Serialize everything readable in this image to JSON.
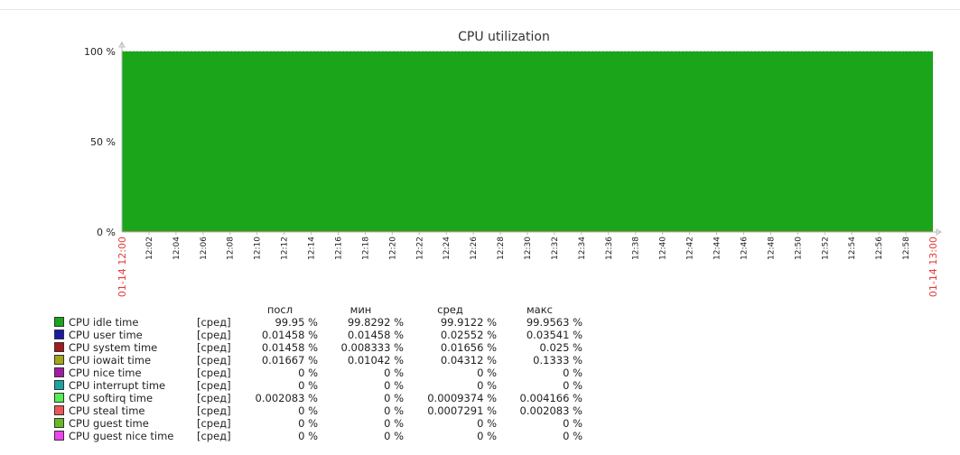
{
  "chart_data": {
    "type": "area",
    "title": "CPU utilization",
    "y_ticks": [
      "100 %",
      "50 %",
      "0 %"
    ],
    "ylim": [
      0,
      100
    ],
    "x_range_labels": {
      "start": "01-14 12:00",
      "end": "01-14 13:00"
    },
    "x_ticks": [
      "12:02",
      "12:04",
      "12:06",
      "12:08",
      "12:10",
      "12:12",
      "12:14",
      "12:16",
      "12:18",
      "12:20",
      "12:22",
      "12:24",
      "12:26",
      "12:28",
      "12:30",
      "12:32",
      "12:34",
      "12:36",
      "12:38",
      "12:40",
      "12:42",
      "12:44",
      "12:46",
      "12:48",
      "12:50",
      "12:52",
      "12:54",
      "12:56",
      "12:58"
    ],
    "series": [
      {
        "name": "CPU idle time",
        "color": "#1aa51a",
        "value": 99.95
      },
      {
        "name": "CPU user time",
        "color": "#1a1aa5"
      },
      {
        "name": "CPU system time",
        "color": "#a51a1a"
      },
      {
        "name": "CPU iowait time",
        "color": "#a5a51a"
      },
      {
        "name": "CPU nice time",
        "color": "#a51aa5"
      },
      {
        "name": "CPU interrupt time",
        "color": "#1aa5a5"
      },
      {
        "name": "CPU softirq time",
        "color": "#55ee55"
      },
      {
        "name": "CPU steal time",
        "color": "#ee5555"
      },
      {
        "name": "CPU guest time",
        "color": "#66bb22"
      },
      {
        "name": "CPU guest nice time",
        "color": "#ee44ee"
      }
    ]
  },
  "legend": {
    "headers": {
      "last": "посл",
      "min": "мин",
      "avg": "сред",
      "max": "макс"
    },
    "rows": [
      {
        "name": "CPU idle time",
        "fn": "[сред]",
        "last": "99.95 %",
        "min": "99.8292 %",
        "avg": "99.9122 %",
        "max": "99.9563 %"
      },
      {
        "name": "CPU user time",
        "fn": "[сред]",
        "last": "0.01458 %",
        "min": "0.01458 %",
        "avg": "0.02552 %",
        "max": "0.03541 %"
      },
      {
        "name": "CPU system time",
        "fn": "[сред]",
        "last": "0.01458 %",
        "min": "0.008333 %",
        "avg": "0.01656 %",
        "max": "0.025 %"
      },
      {
        "name": "CPU iowait time",
        "fn": "[сред]",
        "last": "0.01667 %",
        "min": "0.01042 %",
        "avg": "0.04312 %",
        "max": "0.1333 %"
      },
      {
        "name": "CPU nice time",
        "fn": "[сред]",
        "last": "0 %",
        "min": "0 %",
        "avg": "0 %",
        "max": "0 %"
      },
      {
        "name": "CPU interrupt time",
        "fn": "[сред]",
        "last": "0 %",
        "min": "0 %",
        "avg": "0 %",
        "max": "0 %"
      },
      {
        "name": "CPU softirq time",
        "fn": "[сред]",
        "last": "0.002083 %",
        "min": "0 %",
        "avg": "0.0009374 %",
        "max": "0.004166 %"
      },
      {
        "name": "CPU steal time",
        "fn": "[сред]",
        "last": "0 %",
        "min": "0 %",
        "avg": "0.0007291 %",
        "max": "0.002083 %"
      },
      {
        "name": "CPU guest time",
        "fn": "[сред]",
        "last": "0 %",
        "min": "0 %",
        "avg": "0 %",
        "max": "0 %"
      },
      {
        "name": "CPU guest nice time",
        "fn": "[сред]",
        "last": "0 %",
        "min": "0 %",
        "avg": "0 %",
        "max": "0 %"
      }
    ]
  }
}
